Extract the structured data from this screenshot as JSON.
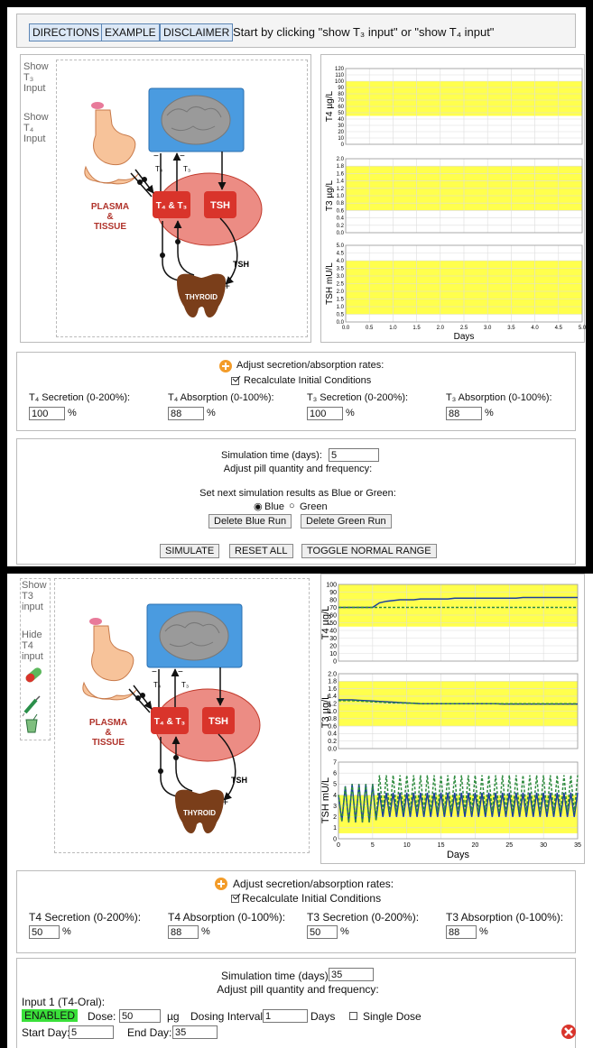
{
  "header": {
    "buttons": [
      "DIRECTIONS",
      "EXAMPLE",
      "DISCLAIMER"
    ],
    "instruction": "Start by clicking \"show T₃ input\" or \"show T₄ input\""
  },
  "diagram": {
    "t4": "T₄",
    "t3": "T₃",
    "minus": "−",
    "t4_t3": "T₄ & T₃",
    "tsh_box": "TSH",
    "plasma": "PLASMA",
    "amp": "&",
    "tissue": "TISSUE",
    "tsh_arrow": "TSH",
    "plus": "+",
    "thyroid": "THYROID"
  },
  "top": {
    "sidebar": [
      "Show T₃ Input",
      "Show T₄ Input"
    ],
    "charts": [
      {
        "type": "line",
        "ylabel": "T4 µg/L",
        "ylim": [
          0,
          120
        ],
        "yticks": [
          0,
          10,
          20,
          30,
          40,
          50,
          60,
          70,
          80,
          90,
          100,
          110,
          120
        ],
        "normal_range": [
          45,
          100
        ],
        "xlim": [
          0,
          5
        ]
      },
      {
        "type": "line",
        "ylabel": "T3 µg/L",
        "ylim": [
          0,
          2
        ],
        "yticks": [
          {
            "value": 0,
            "label": "0.0"
          },
          0.2,
          0.4,
          0.6,
          0.8,
          {
            "value": 1,
            "label": "1.0"
          },
          1.2,
          1.4,
          1.6,
          1.8,
          {
            "value": 2,
            "label": "2.0"
          }
        ],
        "normal_range": [
          0.6,
          1.8
        ],
        "xlim": [
          0,
          5
        ]
      },
      {
        "type": "line",
        "ylabel": "TSH mU/L",
        "xlabel": "Days",
        "ylim": [
          0,
          5
        ],
        "yticks": [
          {
            "value": 0,
            "label": "0.0"
          },
          0.5,
          {
            "value": 1,
            "label": "1.0"
          },
          1.5,
          {
            "value": 2,
            "label": "2.0"
          },
          2.5,
          {
            "value": 3,
            "label": "3.0"
          },
          3.5,
          {
            "value": 4,
            "label": "4.0"
          },
          4.5,
          {
            "value": 5,
            "label": "5.0"
          }
        ],
        "normal_range": [
          0.5,
          4
        ],
        "xlim": [
          0,
          5
        ],
        "xticks": [
          {
            "value": 0,
            "label": "0.0"
          },
          0.5,
          {
            "value": 1,
            "label": "1.0"
          },
          1.5,
          {
            "value": 2,
            "label": "2.0"
          },
          2.5,
          {
            "value": 3,
            "label": "3.0"
          },
          3.5,
          {
            "value": 4,
            "label": "4.0"
          },
          4.5,
          {
            "value": 5,
            "label": "5.0"
          }
        ]
      }
    ],
    "adjust": {
      "title": "Adjust secretion/absorption rates:",
      "recalc": "Recalculate Initial Conditions",
      "unit": "%",
      "fields": [
        {
          "label": "T₄ Secretion (0-200%):",
          "value": 100
        },
        {
          "label": "T₄ Absorption (0-100%):",
          "value": 88
        },
        {
          "label": "T₃ Secretion (0-200%):",
          "value": 100
        },
        {
          "label": "T₃ Absorption (0-100%):",
          "value": 88
        }
      ]
    },
    "simulation": {
      "time_label": "Simulation time (days):",
      "time": 5,
      "pill": "Adjust pill quantity and frequency:",
      "run_label": "Set next simulation results as Blue or Green:",
      "radio": [
        "Blue",
        "Green"
      ],
      "delete_buttons": [
        "Delete Blue Run",
        "Delete Green Run"
      ],
      "buttons": [
        "SIMULATE",
        "RESET ALL",
        "TOGGLE NORMAL RANGE"
      ]
    }
  },
  "bottom": {
    "sidebar": [
      "Show T3 input",
      "Hide T4 input"
    ],
    "charts": [
      {
        "type": "line",
        "ylabel": "T4 µg/L",
        "ylim": [
          0,
          100
        ],
        "yticks": [
          0,
          10,
          20,
          30,
          40,
          50,
          60,
          70,
          80,
          90,
          100
        ],
        "normal_range": [
          45,
          100
        ],
        "xlim": [
          0,
          35
        ],
        "x": [
          0,
          1,
          2,
          3,
          4,
          5,
          6,
          7,
          8,
          9,
          10,
          11,
          12,
          13,
          14,
          15,
          16,
          17,
          18,
          19,
          20,
          21,
          22,
          23,
          24,
          25,
          26,
          27,
          28,
          29,
          30,
          31,
          32,
          33,
          34,
          35
        ],
        "series": [
          {
            "color": "#1b3f9e",
            "values": [
              70,
              70,
              70,
              70,
              70,
              70,
              76,
              78,
              79,
              80,
              80,
              80,
              81,
              81,
              81,
              81,
              81,
              82,
              82,
              82,
              82,
              82,
              82,
              82,
              82,
              82,
              82,
              83,
              83,
              83,
              83,
              83,
              83,
              83,
              83,
              83
            ]
          },
          {
            "color": "#2e8b3e",
            "dashed": true,
            "values": [
              70,
              70,
              70,
              70,
              70,
              70,
              70,
              70,
              70,
              70,
              70,
              70,
              70,
              70,
              70,
              70,
              70,
              70,
              70,
              70,
              70,
              70,
              70,
              70,
              70,
              70,
              70,
              70,
              70,
              70,
              70,
              70,
              70,
              70,
              70,
              70
            ]
          }
        ]
      },
      {
        "type": "line",
        "ylabel": "T3 µg/L",
        "ylim": [
          0,
          2
        ],
        "yticks": [
          {
            "value": 0,
            "label": "0.0"
          },
          0.2,
          0.4,
          0.6,
          0.8,
          {
            "value": 1,
            "label": "1.0"
          },
          1.2,
          1.4,
          1.6,
          1.8,
          {
            "value": 2,
            "label": "2.0"
          }
        ],
        "normal_range": [
          0.6,
          1.8
        ],
        "xlim": [
          0,
          35
        ],
        "x": [
          0,
          1,
          2,
          3,
          4,
          5,
          6,
          7,
          8,
          9,
          10,
          11,
          12,
          13,
          14,
          15,
          16,
          17,
          18,
          19,
          20,
          21,
          22,
          23,
          24,
          25,
          26,
          27,
          28,
          29,
          30,
          31,
          32,
          33,
          34,
          35
        ],
        "series": [
          {
            "color": "#1b3f9e",
            "values": [
              1.3,
              1.3,
              1.3,
              1.29,
              1.28,
              1.27,
              1.26,
              1.25,
              1.24,
              1.23,
              1.22,
              1.21,
              1.2,
              1.2,
              1.2,
              1.2,
              1.2,
              1.2,
              1.2,
              1.2,
              1.2,
              1.2,
              1.2,
              1.2,
              1.19,
              1.19,
              1.19,
              1.19,
              1.19,
              1.19,
              1.19,
              1.19,
              1.19,
              1.19,
              1.19,
              1.19
            ]
          },
          {
            "color": "#2e8b3e",
            "dashed": true,
            "values": [
              1.28,
              1.28,
              1.28,
              1.27,
              1.26,
              1.25,
              1.24,
              1.23,
              1.22,
              1.22,
              1.21,
              1.21,
              1.2,
              1.2,
              1.2,
              1.2,
              1.2,
              1.2,
              1.2,
              1.2,
              1.2,
              1.2,
              1.2,
              1.2,
              1.2,
              1.2,
              1.2,
              1.2,
              1.2,
              1.2,
              1.2,
              1.2,
              1.2,
              1.2,
              1.2,
              1.2
            ]
          }
        ]
      },
      {
        "type": "line",
        "ylabel": "TSH mU/L",
        "xlabel": "Days",
        "ylim": [
          0,
          7
        ],
        "yticks": [
          0,
          1,
          2,
          3,
          4,
          5,
          6,
          7
        ],
        "normal_range": [
          0.5,
          4
        ],
        "xlim": [
          0,
          35
        ],
        "xticks": [
          0,
          5,
          10,
          15,
          20,
          25,
          30,
          35
        ],
        "x": [
          0,
          0.5,
          1,
          1.5,
          2,
          2.5,
          3,
          3.5,
          4,
          4.5,
          5,
          5.5,
          6,
          6.5,
          7,
          7.5,
          8,
          8.5,
          9,
          9.5,
          10,
          10.5,
          11,
          11.5,
          12,
          12.5,
          13,
          13.5,
          14,
          14.5,
          15,
          15.5,
          16,
          16.5,
          17,
          17.5,
          18,
          18.5,
          19,
          19.5,
          20,
          20.5,
          21,
          21.5,
          22,
          22.5,
          23,
          23.5,
          24,
          24.5,
          25,
          25.5,
          26,
          26.5,
          27,
          27.5,
          28,
          28.5,
          29,
          29.5,
          30,
          30.5,
          31,
          31.5,
          32,
          32.5,
          33,
          33.5,
          34,
          34.5,
          35
        ],
        "series": [
          {
            "color": "#1b3f9e",
            "values": [
              4,
              1.6,
              4.8,
              1.5,
              5,
              1.5,
              5,
              1.5,
              5,
              1.5,
              5,
              1.7,
              4.2,
              2,
              4.2,
              2,
              4.2,
              2,
              4.2,
              2,
              4.2,
              2,
              4.2,
              2,
              4.2,
              2,
              4.2,
              2,
              4.2,
              2,
              4.2,
              2,
              4.2,
              2,
              4.2,
              2,
              4.2,
              2,
              4.2,
              2,
              4.2,
              2,
              4.2,
              2,
              4.2,
              2,
              4.2,
              2,
              4.2,
              2,
              4.2,
              2,
              4.2,
              2,
              4.2,
              2,
              4.2,
              2,
              4.2,
              2,
              4.2,
              2,
              4.2,
              2,
              4.2,
              2,
              4.2,
              2,
              4.2,
              2,
              4.2
            ]
          },
          {
            "color": "#2e8b3e",
            "dashed": true,
            "values": [
              4,
              1.6,
              4.8,
              1.5,
              5,
              1.5,
              5,
              1.5,
              5,
              1.5,
              5,
              1.7,
              5.8,
              2.4,
              5.8,
              2.4,
              5.8,
              2.4,
              5.8,
              2.4,
              5.8,
              2.4,
              5.8,
              2.4,
              5.8,
              2.4,
              5.8,
              2.4,
              5.8,
              2.4,
              5.8,
              2.4,
              5.8,
              2.4,
              5.8,
              2.4,
              5.8,
              2.4,
              5.8,
              2.4,
              5.8,
              2.4,
              5.8,
              2.4,
              5.8,
              2.4,
              5.8,
              2.4,
              5.8,
              2.4,
              5.8,
              2.4,
              5.8,
              2.4,
              5.8,
              2.4,
              5.8,
              2.4,
              5.8,
              2.4,
              5.8,
              2.4,
              5.8,
              2.4,
              5.8,
              2.4,
              5.8,
              2.4,
              5.8,
              2.4,
              5.8
            ]
          }
        ]
      }
    ],
    "adjust": {
      "title": "Adjust secretion/absorption rates:",
      "recalc": "Recalculate Initial Conditions",
      "unit": "%",
      "fields": [
        {
          "label": "T4 Secretion (0-200%):",
          "value": 50
        },
        {
          "label": "T4 Absorption (0-100%):",
          "value": 88
        },
        {
          "label": "T3 Secretion (0-200%):",
          "value": 50
        },
        {
          "label": "T3 Absorption (0-100%):",
          "value": 88
        }
      ]
    },
    "simulation": {
      "time_label": "Simulation time (days):",
      "time": 35,
      "pill": "Adjust pill quantity and frequency:",
      "input_title": "Input 1 (T4-Oral):",
      "status": "ENABLED",
      "dose_label": "Dose:",
      "dose": 50,
      "dose_unit": "µg",
      "interval_label": "Dosing Interval:",
      "interval": 1,
      "interval_unit": "Days",
      "single": "Single Dose",
      "start_label": "Start Day:",
      "start": 5,
      "end_label": "End Day:",
      "end": 35
    }
  }
}
